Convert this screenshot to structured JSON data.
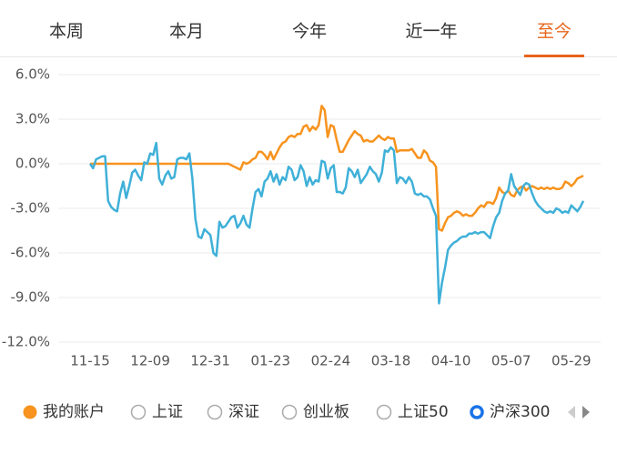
{
  "tabs": [
    "本周",
    "本月",
    "今年",
    "近一年",
    "至今"
  ],
  "active_tab": 4,
  "toggles": [
    "上证",
    "深证",
    "创业板",
    "上证50"
  ],
  "chart_data": {
    "type": "line",
    "categories": [
      "11-15",
      null,
      null,
      null,
      null,
      null,
      null,
      null,
      null,
      null,
      null,
      null,
      null,
      null,
      null,
      null,
      null,
      null,
      null,
      null,
      "12-09",
      null,
      null,
      null,
      null,
      null,
      null,
      null,
      null,
      null,
      null,
      null,
      null,
      null,
      null,
      null,
      null,
      null,
      null,
      null,
      "12-31",
      null,
      null,
      null,
      null,
      null,
      null,
      null,
      null,
      null,
      null,
      null,
      null,
      null,
      null,
      null,
      null,
      null,
      null,
      null,
      "01-23",
      null,
      null,
      null,
      null,
      null,
      null,
      null,
      null,
      null,
      null,
      null,
      null,
      null,
      null,
      null,
      null,
      null,
      null,
      null,
      "02-24",
      null,
      null,
      null,
      null,
      null,
      null,
      null,
      null,
      null,
      null,
      null,
      null,
      null,
      null,
      null,
      null,
      null,
      null,
      null,
      "03-18",
      null,
      null,
      null,
      null,
      null,
      null,
      null,
      null,
      null,
      null,
      null,
      null,
      null,
      null,
      null,
      null,
      null,
      null,
      null,
      "04-10",
      null,
      null,
      null,
      null,
      null,
      null,
      null,
      null,
      null,
      null,
      null,
      null,
      null,
      null,
      null,
      null,
      null,
      null,
      null,
      "05-07",
      null,
      null,
      null,
      null,
      null,
      null,
      null,
      null,
      null,
      null,
      null,
      null,
      null,
      null,
      null,
      null,
      null,
      null,
      null,
      "05-29",
      null,
      null,
      null,
      null
    ],
    "series": [
      {
        "name": "我的账户",
        "color": "#f7931e",
        "values": [
          0,
          0,
          0,
          0,
          0,
          0,
          0,
          0,
          0,
          0,
          0,
          0,
          0,
          0,
          0,
          0,
          0,
          0,
          0,
          0,
          0,
          0,
          0,
          0,
          0,
          0,
          0,
          0,
          0,
          0,
          0,
          0,
          0,
          0,
          0,
          0,
          0,
          0,
          0,
          0,
          0,
          0,
          0,
          0,
          0,
          0,
          0,
          -0.1,
          -0.2,
          -0.3,
          -0.4,
          0.1,
          0.0,
          0.1,
          0.3,
          0.4,
          0.8,
          0.8,
          0.6,
          0.3,
          0.8,
          0.3,
          0.7,
          1.1,
          1.4,
          1.5,
          1.8,
          1.9,
          1.8,
          2.0,
          2.0,
          2.5,
          2.6,
          2.2,
          2.5,
          2.3,
          2.6,
          3.9,
          3.6,
          1.8,
          2.6,
          2.5,
          1.6,
          0.8,
          0.8,
          1.2,
          1.6,
          1.9,
          2.2,
          2.0,
          1.9,
          1.5,
          1.6,
          1.5,
          1.5,
          1.7,
          1.9,
          1.7,
          1.6,
          1.8,
          1.7,
          1.7,
          0.8,
          0.9,
          0.9,
          0.9,
          0.9,
          1.0,
          0.7,
          0.4,
          0.4,
          0.9,
          0.7,
          0.2,
          0.1,
          -0.2,
          -4.4,
          -4.5,
          -4.0,
          -3.6,
          -3.5,
          -3.3,
          -3.2,
          -3.3,
          -3.5,
          -3.4,
          -3.5,
          -3.5,
          -3.3,
          -3.0,
          -2.8,
          -2.9,
          -2.6,
          -2.6,
          -2.7,
          -2.3,
          -1.6,
          -1.9,
          -2.0,
          -1.8,
          -2.1,
          -2.2,
          -1.8,
          -1.6,
          -1.5,
          -1.8,
          -1.6,
          -1.5,
          -1.6,
          -1.7,
          -1.6,
          -1.7,
          -1.6,
          -1.7,
          -1.6,
          -1.7,
          -1.7,
          -1.6,
          -1.2,
          -1.3,
          -1.5,
          -1.3,
          -1.0,
          -0.9,
          -0.8
        ]
      },
      {
        "name": "沪深300",
        "color": "#3fb0d8",
        "values": [
          0,
          -0.3,
          0.3,
          0.4,
          0.5,
          0.5,
          -2.5,
          -2.9,
          -3.1,
          -3.2,
          -2.0,
          -1.2,
          -2.3,
          -1.5,
          -0.6,
          -0.4,
          -0.8,
          -1.1,
          0.1,
          0.0,
          0.7,
          0.6,
          1.4,
          -1.0,
          -1.4,
          -0.8,
          -0.5,
          -1.0,
          -0.9,
          0.3,
          0.4,
          0.4,
          0.3,
          0.7,
          -1.0,
          -3.7,
          -4.9,
          -5.0,
          -4.4,
          -4.6,
          -4.8,
          -6.0,
          -6.2,
          -3.9,
          -4.3,
          -4.2,
          -3.9,
          -3.6,
          -3.5,
          -4.3,
          -4.0,
          -3.5,
          -4.1,
          -4.3,
          -3.0,
          -1.9,
          -1.7,
          -2.2,
          -1.2,
          -1.0,
          -0.5,
          -1.2,
          -0.7,
          -1.4,
          -0.9,
          -1.1,
          -0.2,
          -0.4,
          -1.1,
          -0.9,
          -0.1,
          -0.5,
          -1.5,
          -0.9,
          -1.4,
          -1.1,
          -1.2,
          0.2,
          0.1,
          -1.0,
          -0.3,
          -0.1,
          -1.9,
          -1.9,
          -2.0,
          -1.6,
          -0.3,
          -0.5,
          -0.9,
          -0.4,
          -1.3,
          -1.0,
          -0.7,
          -0.2,
          -0.5,
          -0.7,
          -1.2,
          -0.6,
          0.9,
          0.8,
          1.1,
          0.9,
          -1.3,
          -0.9,
          -1.0,
          -1.3,
          -0.9,
          -1.2,
          -2.0,
          -2.1,
          -2.0,
          -2.2,
          -2.2,
          -2.4,
          -3.0,
          -3.5,
          -9.4,
          -8.0,
          -7.0,
          -5.8,
          -5.5,
          -5.3,
          -5.2,
          -5.0,
          -4.9,
          -4.9,
          -4.7,
          -4.7,
          -4.6,
          -4.7,
          -4.6,
          -4.6,
          -4.8,
          -5.0,
          -4.2,
          -3.6,
          -3.3,
          -2.5,
          -2.0,
          -1.8,
          -0.7,
          -1.5,
          -1.8,
          -2.1,
          -1.5,
          -1.3,
          -1.4,
          -2.0,
          -2.5,
          -2.8,
          -3.0,
          -3.2,
          -3.3,
          -3.2,
          -3.3,
          -3.0,
          -3.1,
          -3.3,
          -3.2,
          -3.3,
          -2.8,
          -3.0,
          -3.2,
          -2.9,
          -2.5
        ]
      }
    ],
    "ylim": [
      -12,
      6
    ],
    "yticks": [
      {
        "value": 6,
        "label": "6.0%"
      },
      {
        "value": 3,
        "label": "3.0%"
      },
      {
        "value": 0,
        "label": "0.0%"
      },
      {
        "value": -3,
        "label": "-3.0%"
      },
      {
        "value": -6,
        "label": "-6.0%"
      },
      {
        "value": -9,
        "label": "-9.0%"
      },
      {
        "value": -12,
        "label": "-12.0%"
      }
    ],
    "grid": true
  }
}
